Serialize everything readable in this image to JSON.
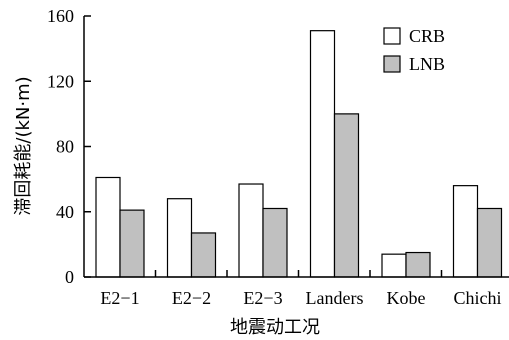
{
  "chart_data": {
    "type": "bar",
    "title": "",
    "xlabel": "地震动工况",
    "ylabel": "滞回耗能/(kN·m)",
    "categories": [
      "E2−1",
      "E2−2",
      "E2−3",
      "Landers",
      "Kobe",
      "Chichi"
    ],
    "series": [
      {
        "name": "CRB",
        "color": "#ffffff",
        "values": [
          61,
          48,
          57,
          151,
          14,
          56
        ]
      },
      {
        "name": "LNB",
        "color": "#c0c0c0",
        "values": [
          41,
          27,
          42,
          100,
          15,
          42
        ]
      }
    ],
    "ylim": [
      0,
      160
    ],
    "yticks": [
      0,
      40,
      80,
      120,
      160
    ],
    "grid": false,
    "legend_position": "top-right",
    "bar_edge_color": "#000000"
  }
}
